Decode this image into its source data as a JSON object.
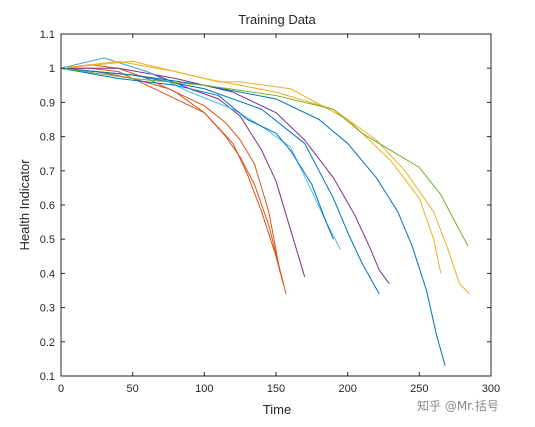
{
  "watermark": "知乎 @Mr.括号",
  "chart_data": {
    "type": "line",
    "title": "Training Data",
    "xlabel": "Time",
    "ylabel": "Health Indicator",
    "xlim": [
      0,
      300
    ],
    "ylim": [
      0.1,
      1.1
    ],
    "xticks": [
      0,
      50,
      100,
      150,
      200,
      250,
      300
    ],
    "yticks": [
      0.1,
      0.2,
      0.3,
      0.4,
      0.5,
      0.6,
      0.7,
      0.8,
      0.9,
      1,
      1.1
    ],
    "xtick_labels": [
      "0",
      "50",
      "100",
      "150",
      "200",
      "250",
      "300"
    ],
    "ytick_labels": [
      "0.1",
      "0.2",
      "0.3",
      "0.4",
      "0.5",
      "0.6",
      "0.7",
      "0.8",
      "0.9",
      "1",
      "1.1"
    ],
    "grid": false,
    "legend": false,
    "series": [
      {
        "color": "#D95319",
        "x": [
          0,
          20,
          40,
          60,
          80,
          100,
          120,
          130,
          140,
          150,
          155
        ],
        "y": [
          1.0,
          1.0,
          0.99,
          0.95,
          0.91,
          0.87,
          0.78,
          0.69,
          0.58,
          0.45,
          0.37
        ]
      },
      {
        "color": "#D95319",
        "x": [
          0,
          20,
          40,
          60,
          80,
          100,
          115,
          125,
          135,
          145,
          157
        ],
        "y": [
          1.0,
          1.01,
          1.0,
          0.97,
          0.93,
          0.87,
          0.8,
          0.74,
          0.66,
          0.54,
          0.34
        ]
      },
      {
        "color": "#D95319",
        "x": [
          0,
          25,
          50,
          75,
          100,
          115,
          125,
          135,
          145,
          153
        ],
        "y": [
          1.0,
          0.99,
          0.97,
          0.94,
          0.89,
          0.84,
          0.79,
          0.72,
          0.58,
          0.4
        ]
      },
      {
        "color": "#7E2F8E",
        "x": [
          0,
          30,
          60,
          90,
          110,
          125,
          140,
          150,
          160,
          170
        ],
        "y": [
          1.0,
          1.03,
          0.99,
          0.94,
          0.91,
          0.86,
          0.76,
          0.67,
          0.53,
          0.39
        ]
      },
      {
        "color": "#7E2F8E",
        "x": [
          0,
          40,
          80,
          120,
          150,
          170,
          190,
          205,
          215,
          222,
          229
        ],
        "y": [
          1.0,
          1.0,
          0.97,
          0.93,
          0.87,
          0.79,
          0.68,
          0.57,
          0.48,
          0.41,
          0.37
        ]
      },
      {
        "color": "#4DBEEE",
        "x": [
          0,
          30,
          60,
          90,
          120,
          140,
          160,
          175,
          185,
          195
        ],
        "y": [
          1.0,
          1.03,
          0.99,
          0.93,
          0.88,
          0.83,
          0.77,
          0.64,
          0.55,
          0.47
        ]
      },
      {
        "color": "#0072BD",
        "x": [
          0,
          40,
          80,
          110,
          130,
          150,
          160,
          175,
          185,
          190
        ],
        "y": [
          1.0,
          0.97,
          0.95,
          0.92,
          0.85,
          0.81,
          0.76,
          0.66,
          0.55,
          0.5
        ]
      },
      {
        "color": "#0072BD",
        "x": [
          0,
          50,
          100,
          140,
          170,
          190,
          200,
          210,
          222
        ],
        "y": [
          1.0,
          0.98,
          0.94,
          0.88,
          0.78,
          0.62,
          0.52,
          0.43,
          0.34
        ]
      },
      {
        "color": "#0072BD",
        "x": [
          0,
          50,
          100,
          150,
          180,
          200,
          220,
          235,
          245,
          255,
          262,
          268
        ],
        "y": [
          1.0,
          0.98,
          0.95,
          0.91,
          0.85,
          0.78,
          0.68,
          0.58,
          0.48,
          0.35,
          0.22,
          0.13
        ]
      },
      {
        "color": "#EDB120",
        "x": [
          0,
          40,
          80,
          110,
          125,
          160,
          200,
          230,
          250,
          260,
          265
        ],
        "y": [
          1.0,
          1.02,
          0.99,
          0.96,
          0.96,
          0.94,
          0.85,
          0.73,
          0.62,
          0.5,
          0.4
        ]
      },
      {
        "color": "#EDB120",
        "x": [
          0,
          50,
          100,
          150,
          190,
          220,
          240,
          260,
          270,
          278,
          285
        ],
        "y": [
          1.0,
          1.02,
          0.97,
          0.93,
          0.88,
          0.79,
          0.7,
          0.58,
          0.47,
          0.37,
          0.34
        ]
      },
      {
        "color": "#77AC30",
        "x": [
          0,
          50,
          100,
          150,
          190,
          210,
          230,
          250,
          265,
          275,
          284
        ],
        "y": [
          1.0,
          0.97,
          0.95,
          0.92,
          0.88,
          0.81,
          0.76,
          0.71,
          0.63,
          0.55,
          0.48
        ]
      }
    ]
  }
}
